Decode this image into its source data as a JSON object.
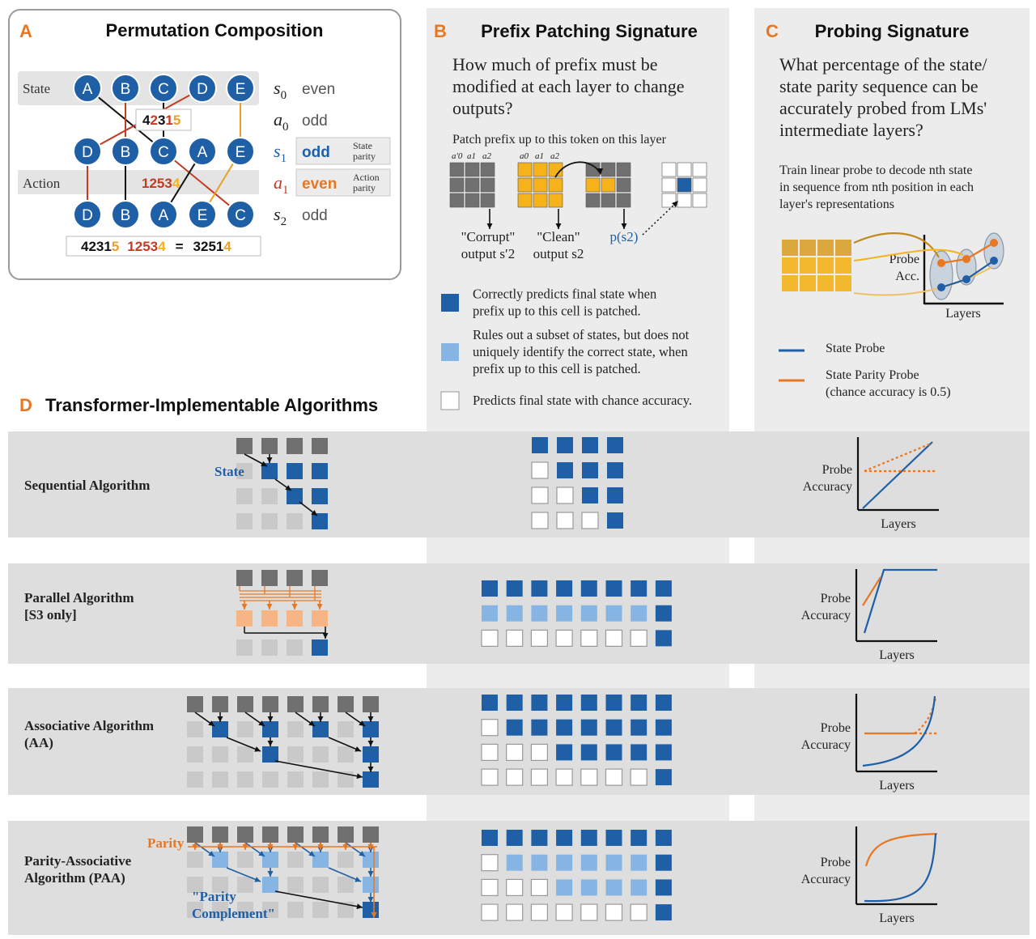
{
  "colors": {
    "blue_dark": "#1f5fa6",
    "blue_light": "#86b5e3",
    "orange": "#e87722",
    "orange_light": "#f7b585",
    "gold": "#f5b21b",
    "red": "#c23b22",
    "gray_dark": "#6e6e6e",
    "gray_light": "#c9c9c9",
    "panel_bg": "#ececec",
    "band_bg": "#dedede"
  },
  "panelA": {
    "letter": "A",
    "title": "Permutation Composition",
    "state_label": "State",
    "action_label": "Action",
    "row1": [
      "A",
      "B",
      "C",
      "D",
      "E"
    ],
    "row2": [
      "D",
      "B",
      "C",
      "A",
      "E"
    ],
    "row3": [
      "D",
      "B",
      "A",
      "E",
      "C"
    ],
    "mid_box": "42315",
    "action_digits_main": "1253",
    "action_digit_last": "4",
    "eq_left_main": "4231",
    "eq_left_last": "5",
    "eq_mid_main": "1253",
    "eq_mid_last": "4",
    "eq_sign": "=",
    "eq_right_main": "3251",
    "eq_right_last": "4",
    "seq": [
      {
        "sym": "s",
        "sub": "0",
        "parity": "even"
      },
      {
        "sym": "a",
        "sub": "0",
        "parity": "odd"
      },
      {
        "sym": "s",
        "sub": "1",
        "parity": "odd",
        "tag": [
          "State",
          "parity"
        ]
      },
      {
        "sym": "a",
        "sub": "1",
        "parity": "even",
        "tag": [
          "Action",
          "parity"
        ]
      },
      {
        "sym": "s",
        "sub": "2",
        "parity": "odd"
      }
    ]
  },
  "panelB": {
    "letter": "B",
    "title": "Prefix Patching Signature",
    "question": [
      "How much of prefix must be",
      "modified at each layer to change",
      "outputs?"
    ],
    "patch_caption": "Patch prefix up to this token on this layer",
    "col_labels_left": [
      "a′0",
      "a1",
      "a2"
    ],
    "col_labels_mid": [
      "a0",
      "a1",
      "a2"
    ],
    "corrupt_label": [
      "\"Corrupt\"",
      "output s′2"
    ],
    "clean_label": [
      "\"Clean\"",
      "output s2"
    ],
    "prob_label": "p(s2)",
    "legend": [
      {
        "kind": "dark",
        "text": [
          "Correctly predicts final state when",
          "prefix up to this cell is patched."
        ]
      },
      {
        "kind": "light",
        "text": [
          "Rules out a subset of states, but does not",
          "uniquely identify the correct state, when",
          "prefix up to this cell is patched."
        ]
      },
      {
        "kind": "empty",
        "text": [
          "Predicts final state with chance accuracy."
        ]
      }
    ]
  },
  "panelC": {
    "letter": "C",
    "title": "Probing Signature",
    "question": [
      "What percentage of the state/",
      "state parity sequence can be",
      "accurately probed from LMs'",
      "intermediate layers?"
    ],
    "desc": [
      "Train linear probe to decode nth state",
      "in sequence from nth position in each",
      "layer's representations"
    ],
    "probe_acc": [
      "Probe",
      "Acc."
    ],
    "layers": "Layers",
    "legend": [
      {
        "color": "blue",
        "text": [
          "State Probe"
        ]
      },
      {
        "color": "orange",
        "text": [
          "State Parity Probe",
          "(chance accuracy is 0.5)"
        ]
      }
    ]
  },
  "panelD": {
    "letter": "D",
    "title": "Transformer-Implementable Algorithms",
    "rows": [
      {
        "name": [
          "Sequential Algorithm"
        ],
        "annot": "State",
        "probe": [
          "Probe",
          "Accuracy"
        ],
        "layers": "Layers"
      },
      {
        "name": [
          "Parallel Algorithm",
          "[S3 only]"
        ],
        "probe": [
          "Probe",
          "Accuracy"
        ],
        "layers": "Layers"
      },
      {
        "name": [
          "Associative Algorithm",
          "(AA)"
        ],
        "probe": [
          "Probe",
          "Accuracy"
        ],
        "layers": "Layers"
      },
      {
        "name": [
          "Parity-Associative",
          "Algorithm (PAA)"
        ],
        "annot": "Parity",
        "annot2": [
          "\"Parity",
          "Complement\""
        ],
        "probe": [
          "Probe",
          "Accuracy"
        ],
        "layers": "Layers"
      }
    ]
  },
  "patch_grids": [
    [
      [
        "d",
        "d",
        "d",
        "d"
      ],
      [
        "e",
        "d",
        "d",
        "d"
      ],
      [
        "e",
        "e",
        "d",
        "d"
      ],
      [
        "e",
        "e",
        "e",
        "d"
      ]
    ],
    [
      [
        "d",
        "d",
        "d",
        "d",
        "d",
        "d",
        "d",
        "d"
      ],
      [
        "l",
        "l",
        "l",
        "l",
        "l",
        "l",
        "l",
        "d"
      ],
      [
        "e",
        "e",
        "e",
        "e",
        "e",
        "e",
        "e",
        "d"
      ]
    ],
    [
      [
        "d",
        "d",
        "d",
        "d",
        "d",
        "d",
        "d",
        "d"
      ],
      [
        "e",
        "d",
        "d",
        "d",
        "d",
        "d",
        "d",
        "d"
      ],
      [
        "e",
        "e",
        "e",
        "d",
        "d",
        "d",
        "d",
        "d"
      ],
      [
        "e",
        "e",
        "e",
        "e",
        "e",
        "e",
        "e",
        "d"
      ]
    ],
    [
      [
        "d",
        "d",
        "d",
        "d",
        "d",
        "d",
        "d",
        "d"
      ],
      [
        "e",
        "l",
        "l",
        "l",
        "l",
        "l",
        "l",
        "d"
      ],
      [
        "e",
        "e",
        "e",
        "l",
        "l",
        "l",
        "l",
        "d"
      ],
      [
        "e",
        "e",
        "e",
        "e",
        "e",
        "e",
        "e",
        "d"
      ]
    ]
  ]
}
